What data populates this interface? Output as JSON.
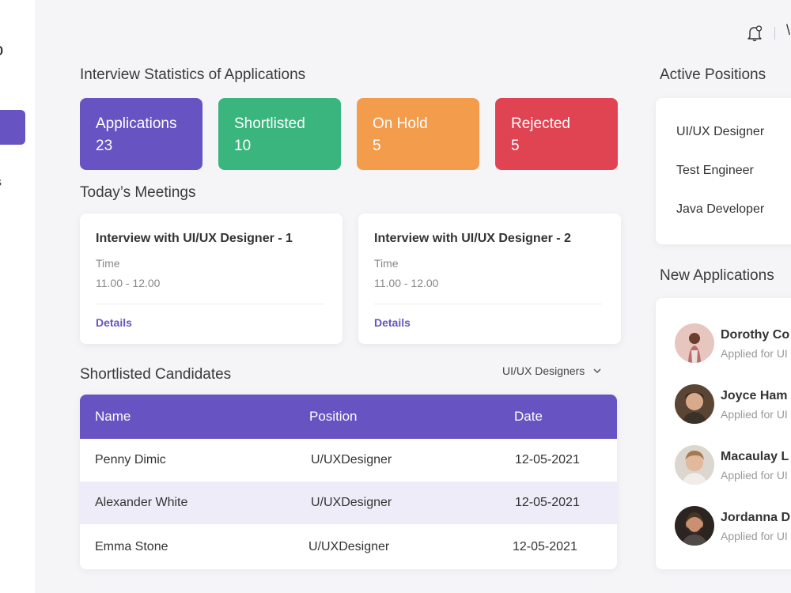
{
  "sidebar": {
    "logo_glyph": "o",
    "partial_item": "s"
  },
  "topbar": {
    "user_glyph": "\\"
  },
  "stats": {
    "title": "Interview Statistics of Applications",
    "cards": [
      {
        "label": "Applications",
        "value": "23",
        "color": "#6753c2"
      },
      {
        "label": "Shortlisted",
        "value": "10",
        "color": "#39b57d"
      },
      {
        "label": "On Hold",
        "value": "5",
        "color": "#f39c4b"
      },
      {
        "label": "Rejected",
        "value": "5",
        "color": "#e04452"
      }
    ]
  },
  "meetings": {
    "title": "Today’s Meetings",
    "items": [
      {
        "title": "Interview with UI/UX Designer - 1",
        "time_label": "Time",
        "time": "11.00 - 12.00",
        "details": "Details"
      },
      {
        "title": "Interview with UI/UX Designer - 2",
        "time_label": "Time",
        "time": "11.00 - 12.00",
        "details": "Details"
      }
    ]
  },
  "candidates": {
    "title": "Shortlisted Candidates",
    "filter": "UI/UX Designers",
    "columns": [
      "Name",
      "Position",
      "Date"
    ],
    "rows": [
      {
        "name": "Penny Dimic",
        "position": "U/UXDesigner",
        "date": "12-05-2021"
      },
      {
        "name": "Alexander White",
        "position": "U/UXDesigner",
        "date": "12-05-2021"
      },
      {
        "name": "Emma Stone",
        "position": "U/UXDesigner",
        "date": "12-05-2021"
      }
    ]
  },
  "positions": {
    "title": "Active Positions",
    "items": [
      "UI/UX Designer",
      "Test Engineer",
      "Java Developer"
    ]
  },
  "applications": {
    "title": "New Applications",
    "items": [
      {
        "name": "Dorothy Co",
        "sub": "Applied for UI"
      },
      {
        "name": "Joyce Ham",
        "sub": "Applied for UI"
      },
      {
        "name": "Macaulay L",
        "sub": "Applied for UI"
      },
      {
        "name": "Jordanna D",
        "sub": "Applied for UI"
      }
    ]
  },
  "colors": {
    "accent": "#6753c2",
    "row_highlight": "#eeecf9",
    "background": "#f5f5f8"
  }
}
